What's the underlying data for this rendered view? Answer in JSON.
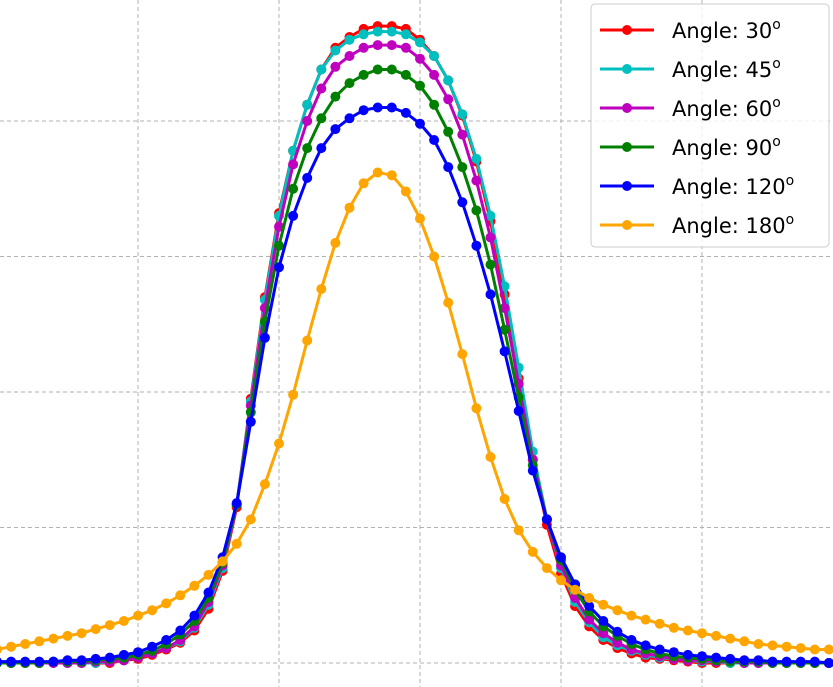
{
  "chart_data": {
    "type": "line",
    "title": "",
    "xlabel": "",
    "ylabel": "",
    "xlim": [
      -3.0,
      3.0
    ],
    "ylim": [
      -0.02,
      4.9
    ],
    "grid": true,
    "legend_position": "top-right",
    "series": [
      {
        "name_prefix": "Angle: ",
        "name_value": "30",
        "name_sup": "o",
        "color": "#ff0000",
        "x": [
          -3.0,
          -2.9,
          -2.8,
          -2.7,
          -2.6,
          -2.5,
          -2.4,
          -2.3,
          -2.2,
          -2.1,
          -2.0,
          -1.9,
          -1.8,
          -1.7,
          -1.6,
          -1.5,
          -1.4,
          -1.3,
          -1.2,
          -1.1,
          -1.0,
          -0.9,
          -0.8,
          -0.7,
          -0.6,
          -0.5,
          -0.4,
          -0.3,
          -0.2,
          -0.1,
          0.0,
          0.1,
          0.2,
          0.3,
          0.4,
          0.5,
          0.6,
          0.7,
          0.8,
          0.9,
          1.0,
          1.1,
          1.2,
          1.3,
          1.4,
          1.5,
          1.6,
          1.7,
          1.8,
          1.9,
          2.0,
          2.1,
          2.2,
          2.3,
          2.4,
          2.5,
          2.6,
          2.7,
          2.8,
          2.9,
          3.0
        ],
        "y": [
          0.0,
          0.0,
          0.0,
          0.0,
          0.0,
          0.0,
          0.0,
          0.0,
          0.0,
          0.02,
          0.03,
          0.06,
          0.1,
          0.15,
          0.24,
          0.4,
          0.68,
          1.15,
          1.95,
          2.7,
          3.32,
          3.78,
          4.12,
          4.38,
          4.54,
          4.62,
          4.68,
          4.7,
          4.7,
          4.68,
          4.6,
          4.48,
          4.3,
          4.04,
          3.7,
          3.26,
          2.72,
          2.1,
          1.5,
          1.02,
          0.66,
          0.42,
          0.27,
          0.17,
          0.11,
          0.07,
          0.04,
          0.03,
          0.02,
          0.01,
          0.0,
          0.0,
          0.0,
          0.0,
          0.0,
          0.0,
          0.0,
          0.0,
          0.0,
          0.0,
          0.0
        ]
      },
      {
        "name_prefix": "Angle: ",
        "name_value": "45",
        "name_sup": "o",
        "color": "#00bfbf",
        "x": [
          -3.0,
          -2.9,
          -2.8,
          -2.7,
          -2.6,
          -2.5,
          -2.4,
          -2.3,
          -2.2,
          -2.1,
          -2.0,
          -1.9,
          -1.8,
          -1.7,
          -1.6,
          -1.5,
          -1.4,
          -1.3,
          -1.2,
          -1.1,
          -1.0,
          -0.9,
          -0.8,
          -0.7,
          -0.6,
          -0.5,
          -0.4,
          -0.3,
          -0.2,
          -0.1,
          0.0,
          0.1,
          0.2,
          0.3,
          0.4,
          0.5,
          0.6,
          0.7,
          0.8,
          0.9,
          1.0,
          1.1,
          1.2,
          1.3,
          1.4,
          1.5,
          1.6,
          1.7,
          1.8,
          1.9,
          2.0,
          2.1,
          2.2,
          2.3,
          2.4,
          2.5,
          2.6,
          2.7,
          2.8,
          2.9,
          3.0
        ],
        "y": [
          0.0,
          0.0,
          0.0,
          0.0,
          0.0,
          0.0,
          0.0,
          0.0,
          0.01,
          0.02,
          0.04,
          0.07,
          0.11,
          0.16,
          0.26,
          0.43,
          0.7,
          1.17,
          1.93,
          2.68,
          3.3,
          3.78,
          4.12,
          4.38,
          4.52,
          4.6,
          4.64,
          4.66,
          4.66,
          4.64,
          4.58,
          4.48,
          4.3,
          4.05,
          3.72,
          3.3,
          2.78,
          2.18,
          1.56,
          1.06,
          0.7,
          0.45,
          0.3,
          0.19,
          0.13,
          0.09,
          0.06,
          0.04,
          0.03,
          0.02,
          0.01,
          0.01,
          0.0,
          0.0,
          0.0,
          0.0,
          0.0,
          0.0,
          0.0,
          0.0,
          0.0
        ]
      },
      {
        "name_prefix": "Angle: ",
        "name_value": "60",
        "name_sup": "o",
        "color": "#bf00bf",
        "x": [
          -3.0,
          -2.9,
          -2.8,
          -2.7,
          -2.6,
          -2.5,
          -2.4,
          -2.3,
          -2.2,
          -2.1,
          -2.0,
          -1.9,
          -1.8,
          -1.7,
          -1.6,
          -1.5,
          -1.4,
          -1.3,
          -1.2,
          -1.1,
          -1.0,
          -0.9,
          -0.8,
          -0.7,
          -0.6,
          -0.5,
          -0.4,
          -0.3,
          -0.2,
          -0.1,
          0.0,
          0.1,
          0.2,
          0.3,
          0.4,
          0.5,
          0.6,
          0.7,
          0.8,
          0.9,
          1.0,
          1.1,
          1.2,
          1.3,
          1.4,
          1.5,
          1.6,
          1.7,
          1.8,
          1.9,
          2.0,
          2.1,
          2.2,
          2.3,
          2.4,
          2.5,
          2.6,
          2.7,
          2.8,
          2.9,
          3.0
        ],
        "y": [
          0.0,
          0.0,
          0.0,
          0.0,
          0.0,
          0.0,
          0.0,
          0.01,
          0.01,
          0.02,
          0.04,
          0.07,
          0.11,
          0.17,
          0.27,
          0.45,
          0.72,
          1.17,
          1.9,
          2.62,
          3.22,
          3.68,
          4.0,
          4.24,
          4.4,
          4.48,
          4.54,
          4.56,
          4.56,
          4.54,
          4.46,
          4.34,
          4.16,
          3.9,
          3.56,
          3.14,
          2.62,
          2.06,
          1.5,
          1.06,
          0.72,
          0.48,
          0.32,
          0.22,
          0.15,
          0.1,
          0.07,
          0.05,
          0.03,
          0.02,
          0.02,
          0.01,
          0.01,
          0.0,
          0.0,
          0.0,
          0.0,
          0.0,
          0.0,
          0.0,
          0.0
        ]
      },
      {
        "name_prefix": "Angle: ",
        "name_value": "90",
        "name_sup": "o",
        "color": "#008000",
        "x": [
          -3.0,
          -2.9,
          -2.8,
          -2.7,
          -2.6,
          -2.5,
          -2.4,
          -2.3,
          -2.2,
          -2.1,
          -2.0,
          -1.9,
          -1.8,
          -1.7,
          -1.6,
          -1.5,
          -1.4,
          -1.3,
          -1.2,
          -1.1,
          -1.0,
          -0.9,
          -0.8,
          -0.7,
          -0.6,
          -0.5,
          -0.4,
          -0.3,
          -0.2,
          -0.1,
          0.0,
          0.1,
          0.2,
          0.3,
          0.4,
          0.5,
          0.6,
          0.7,
          0.8,
          0.9,
          1.0,
          1.1,
          1.2,
          1.3,
          1.4,
          1.5,
          1.6,
          1.7,
          1.8,
          1.9,
          2.0,
          2.1,
          2.2,
          2.3,
          2.4,
          2.5,
          2.6,
          2.7,
          2.8,
          2.9,
          3.0
        ],
        "y": [
          0.0,
          0.0,
          0.0,
          0.0,
          0.01,
          0.01,
          0.01,
          0.02,
          0.03,
          0.04,
          0.06,
          0.09,
          0.14,
          0.21,
          0.31,
          0.48,
          0.74,
          1.17,
          1.85,
          2.52,
          3.08,
          3.5,
          3.8,
          4.02,
          4.18,
          4.28,
          4.34,
          4.38,
          4.38,
          4.34,
          4.26,
          4.12,
          3.92,
          3.66,
          3.34,
          2.94,
          2.46,
          1.96,
          1.46,
          1.06,
          0.76,
          0.54,
          0.38,
          0.27,
          0.2,
          0.14,
          0.1,
          0.07,
          0.05,
          0.04,
          0.03,
          0.02,
          0.01,
          0.01,
          0.01,
          0.0,
          0.0,
          0.0,
          0.0,
          0.0,
          0.0
        ]
      },
      {
        "name_prefix": "Angle: ",
        "name_value": "120",
        "name_sup": "o",
        "color": "#0000ff",
        "x": [
          -3.0,
          -2.9,
          -2.8,
          -2.7,
          -2.6,
          -2.5,
          -2.4,
          -2.3,
          -2.2,
          -2.1,
          -2.0,
          -1.9,
          -1.8,
          -1.7,
          -1.6,
          -1.5,
          -1.4,
          -1.3,
          -1.2,
          -1.1,
          -1.0,
          -0.9,
          -0.8,
          -0.7,
          -0.6,
          -0.5,
          -0.4,
          -0.3,
          -0.2,
          -0.1,
          0.0,
          0.1,
          0.2,
          0.3,
          0.4,
          0.5,
          0.6,
          0.7,
          0.8,
          0.9,
          1.0,
          1.1,
          1.2,
          1.3,
          1.4,
          1.5,
          1.6,
          1.7,
          1.8,
          1.9,
          2.0,
          2.1,
          2.2,
          2.3,
          2.4,
          2.5,
          2.6,
          2.7,
          2.8,
          2.9,
          3.0
        ],
        "y": [
          0.01,
          0.01,
          0.01,
          0.01,
          0.01,
          0.02,
          0.02,
          0.03,
          0.04,
          0.06,
          0.08,
          0.12,
          0.17,
          0.24,
          0.35,
          0.52,
          0.78,
          1.18,
          1.78,
          2.4,
          2.92,
          3.3,
          3.58,
          3.8,
          3.94,
          4.02,
          4.08,
          4.1,
          4.1,
          4.06,
          3.98,
          3.86,
          3.66,
          3.4,
          3.08,
          2.72,
          2.3,
          1.86,
          1.42,
          1.06,
          0.78,
          0.58,
          0.42,
          0.31,
          0.23,
          0.17,
          0.13,
          0.1,
          0.08,
          0.06,
          0.05,
          0.04,
          0.03,
          0.02,
          0.02,
          0.01,
          0.01,
          0.01,
          0.01,
          0.0,
          0.0
        ]
      },
      {
        "name_prefix": "Angle: ",
        "name_value": "180",
        "name_sup": "o",
        "color": "#ffa500",
        "x": [
          -3.0,
          -2.9,
          -2.8,
          -2.7,
          -2.6,
          -2.5,
          -2.4,
          -2.3,
          -2.2,
          -2.1,
          -2.0,
          -1.9,
          -1.8,
          -1.7,
          -1.6,
          -1.5,
          -1.4,
          -1.3,
          -1.2,
          -1.1,
          -1.0,
          -0.9,
          -0.8,
          -0.7,
          -0.6,
          -0.5,
          -0.4,
          -0.3,
          -0.2,
          -0.1,
          0.0,
          0.1,
          0.2,
          0.3,
          0.4,
          0.5,
          0.6,
          0.7,
          0.8,
          0.9,
          1.0,
          1.1,
          1.2,
          1.3,
          1.4,
          1.5,
          1.6,
          1.7,
          1.8,
          1.9,
          2.0,
          2.1,
          2.2,
          2.3,
          2.4,
          2.5,
          2.6,
          2.7,
          2.8,
          2.9,
          3.0
        ],
        "y": [
          0.1,
          0.12,
          0.14,
          0.16,
          0.18,
          0.2,
          0.22,
          0.25,
          0.28,
          0.31,
          0.35,
          0.39,
          0.44,
          0.5,
          0.57,
          0.65,
          0.75,
          0.88,
          1.06,
          1.32,
          1.62,
          1.98,
          2.38,
          2.76,
          3.1,
          3.36,
          3.54,
          3.62,
          3.6,
          3.48,
          3.28,
          3.0,
          2.66,
          2.28,
          1.88,
          1.52,
          1.21,
          0.98,
          0.82,
          0.7,
          0.61,
          0.54,
          0.48,
          0.43,
          0.39,
          0.35,
          0.32,
          0.29,
          0.26,
          0.24,
          0.22,
          0.2,
          0.18,
          0.16,
          0.14,
          0.13,
          0.12,
          0.11,
          0.1,
          0.1,
          0.1
        ]
      }
    ]
  }
}
